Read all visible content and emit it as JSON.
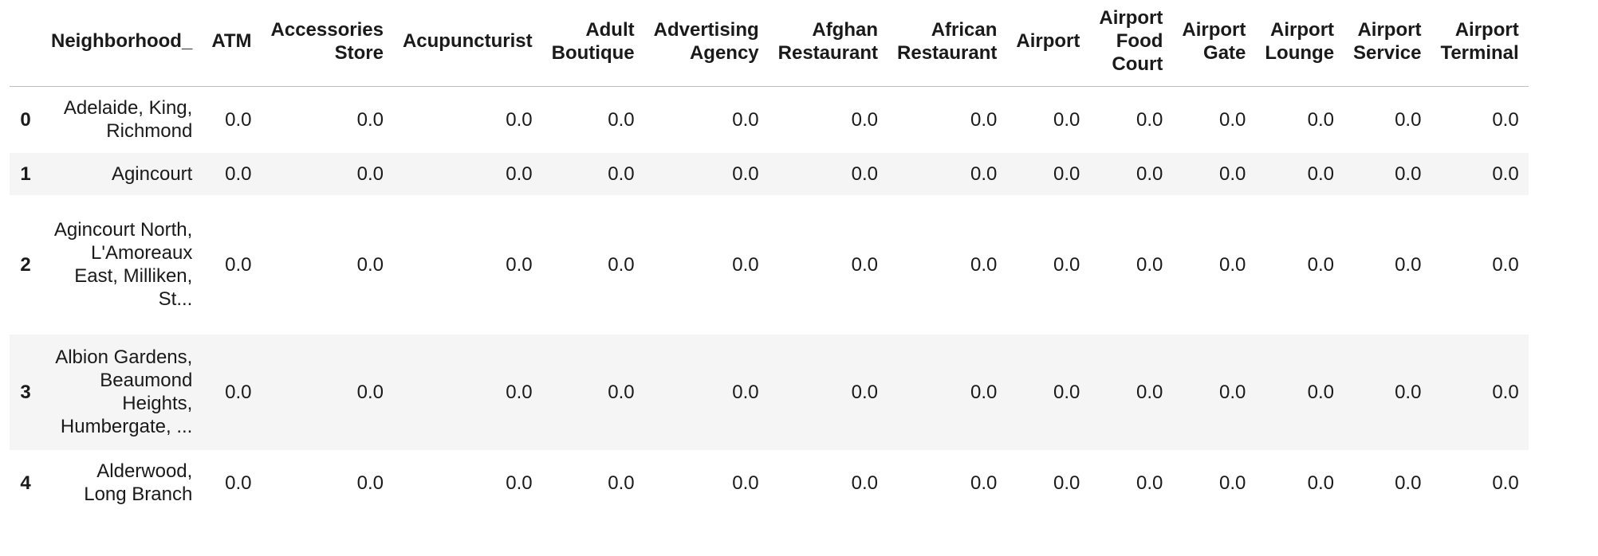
{
  "table": {
    "index_header": "",
    "columns": [
      "Neighborhood_",
      "ATM",
      "Accessories Store",
      "Acupuncturist",
      "Adult Boutique",
      "Advertising Agency",
      "Afghan Restaurant",
      "African Restaurant",
      "Airport",
      "Airport Food Court",
      "Airport Gate",
      "Airport Lounge",
      "Airport Service",
      "Airport Terminal"
    ],
    "rows": [
      {
        "index": "0",
        "cells": [
          "Adelaide, King, Richmond",
          "0.0",
          "0.0",
          "0.0",
          "0.0",
          "0.0",
          "0.0",
          "0.0",
          "0.0",
          "0.0",
          "0.0",
          "0.0",
          "0.0",
          "0.0"
        ]
      },
      {
        "index": "1",
        "cells": [
          "Agincourt",
          "0.0",
          "0.0",
          "0.0",
          "0.0",
          "0.0",
          "0.0",
          "0.0",
          "0.0",
          "0.0",
          "0.0",
          "0.0",
          "0.0",
          "0.0"
        ]
      },
      {
        "index": "2",
        "cells": [
          "Agincourt North, L'Amoreaux East, Milliken, St...",
          "0.0",
          "0.0",
          "0.0",
          "0.0",
          "0.0",
          "0.0",
          "0.0",
          "0.0",
          "0.0",
          "0.0",
          "0.0",
          "0.0",
          "0.0"
        ]
      },
      {
        "index": "3",
        "cells": [
          "Albion Gardens, Beaumond Heights, Humbergate, ...",
          "0.0",
          "0.0",
          "0.0",
          "0.0",
          "0.0",
          "0.0",
          "0.0",
          "0.0",
          "0.0",
          "0.0",
          "0.0",
          "0.0",
          "0.0"
        ]
      },
      {
        "index": "4",
        "cells": [
          "Alderwood, Long Branch",
          "0.0",
          "0.0",
          "0.0",
          "0.0",
          "0.0",
          "0.0",
          "0.0",
          "0.0",
          "0.0",
          "0.0",
          "0.0",
          "0.0",
          "0.0"
        ]
      }
    ]
  }
}
